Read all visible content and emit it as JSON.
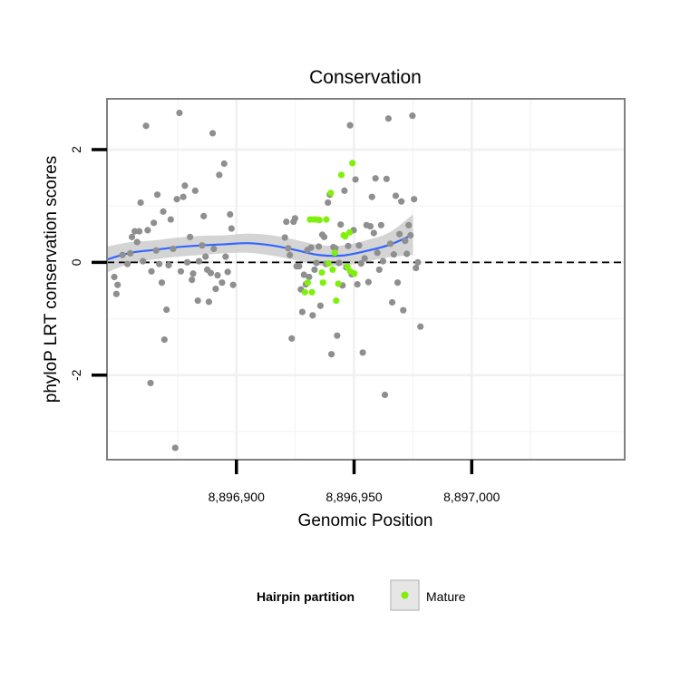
{
  "chart_data": {
    "type": "scatter",
    "title": "Conservation",
    "xlabel": "Genomic Position",
    "ylabel": "phyloP LRT conservation scores",
    "xlim": [
      8896845,
      8897065
    ],
    "ylim": [
      -3.5,
      2.9
    ],
    "x_ticks": [
      8896900,
      8896950,
      8897000
    ],
    "x_tick_labels": [
      "8,896,900",
      "8,896,950",
      "8,897,000"
    ],
    "y_ticks": [
      -2,
      0,
      2
    ],
    "y_tick_labels": [
      "-2",
      "0",
      "2"
    ],
    "grid": true,
    "reference_line": {
      "y": 0,
      "style": "dashed"
    },
    "legend": {
      "title": "Hairpin partition",
      "position": "bottom",
      "entries": [
        "Mature"
      ]
    },
    "colors": {
      "other": "#8f8f8f",
      "mature": "#7ff00a",
      "smooth": "#3366ff",
      "ribbon": "#cccccc"
    },
    "series": [
      {
        "color": "#8f8f8f",
        "points": [
          [
            8896848.1,
            -0.26
          ],
          [
            8896849,
            -0.56
          ],
          [
            8896849.5,
            -0.4
          ],
          [
            8896851.6,
            0.13
          ],
          [
            8896853.7,
            -0.03
          ],
          [
            8896854.9,
            0.16
          ],
          [
            8896855.6,
            0.45
          ],
          [
            8896856.8,
            0.55
          ],
          [
            8896857.8,
            0.36
          ],
          [
            8896858.7,
            0.55
          ],
          [
            8896859.3,
            1.06
          ],
          [
            8896860.3,
            0.02
          ],
          [
            8896861.6,
            2.42
          ],
          [
            8896862.3,
            0.57
          ],
          [
            8896863.5,
            -2.14
          ],
          [
            8896863.9,
            -0.16
          ],
          [
            8896864.9,
            0.7
          ],
          [
            8896865.9,
            0.21
          ],
          [
            8896866.4,
            1.2
          ],
          [
            8896867.2,
            -0.03
          ],
          [
            8896868.3,
            -0.36
          ],
          [
            8896868.9,
            0.9
          ],
          [
            8896869.4,
            -1.37
          ],
          [
            8896870.3,
            -0.84
          ],
          [
            8896871.2,
            -0.05
          ],
          [
            8896872.1,
            0.76
          ],
          [
            8896873.1,
            0.24
          ],
          [
            8896874,
            -3.29
          ],
          [
            8896874.7,
            1.12
          ],
          [
            8896875.8,
            2.65
          ],
          [
            8896876.4,
            -0.16
          ],
          [
            8896877.4,
            1.16
          ],
          [
            8896878.1,
            1.36
          ],
          [
            8896879.1,
            0.0
          ],
          [
            8896880.3,
            0.45
          ],
          [
            8896881.1,
            -0.31
          ],
          [
            8896881.6,
            -0.2
          ],
          [
            8896882.5,
            1.27
          ],
          [
            8896883.6,
            -0.68
          ],
          [
            8896884.1,
            0.02
          ],
          [
            8896885.4,
            0.3
          ],
          [
            8896886.1,
            0.82
          ],
          [
            8896886.9,
            0.1
          ],
          [
            8896887.6,
            -0.13
          ],
          [
            8896888.3,
            -0.7
          ],
          [
            8896889.1,
            -0.19
          ],
          [
            8896889.9,
            2.29
          ],
          [
            8896890.4,
            0.24
          ],
          [
            8896891.2,
            -0.47
          ],
          [
            8896892,
            -0.23
          ],
          [
            8896892.7,
            1.55
          ],
          [
            8896893.9,
            -0.36
          ],
          [
            8896894.8,
            1.75
          ],
          [
            8896895.4,
            0.1
          ],
          [
            8896896.3,
            -0.17
          ],
          [
            8896897.3,
            0.85
          ],
          [
            8896897.9,
            0.6
          ],
          [
            8896898.6,
            -0.4
          ],
          [
            8896920.6,
            0.44
          ],
          [
            8896921.2,
            0.72
          ],
          [
            8896922,
            0.25
          ],
          [
            8896922.7,
            0.13
          ],
          [
            8896923.5,
            -1.35
          ],
          [
            8896924.3,
            0.72
          ],
          [
            8896924.9,
            0.78
          ],
          [
            8896925.6,
            -0.07
          ],
          [
            8896926.6,
            -0.07
          ],
          [
            8896927.4,
            -0.48
          ],
          [
            8896928,
            -0.88
          ],
          [
            8896928.7,
            -0.22
          ],
          [
            8896929.5,
            -0.39
          ],
          [
            8896930.2,
            0.22
          ],
          [
            8896930.9,
            -0.26
          ],
          [
            8896931.7,
            0.26
          ],
          [
            8896932.4,
            -0.94
          ],
          [
            8896933.2,
            -0.13
          ],
          [
            8896934,
            -0.01
          ],
          [
            8896935,
            0.28
          ],
          [
            8896935.7,
            -0.77
          ],
          [
            8896936.5,
            0.49
          ],
          [
            8896937.3,
            0.45
          ],
          [
            8896938.1,
            -0.03
          ],
          [
            8896938.9,
            1.06
          ],
          [
            8896939.7,
            1.2
          ],
          [
            8896940.4,
            -1.63
          ],
          [
            8896941.2,
            0.27
          ],
          [
            8896942,
            0.25
          ],
          [
            8896942.8,
            -1.3
          ],
          [
            8896943.6,
            -0.01
          ],
          [
            8896944.3,
            0.67
          ],
          [
            8896945.1,
            -0.41
          ],
          [
            8896945.9,
            1.27
          ],
          [
            8896946.7,
            -0.09
          ],
          [
            8896947.5,
            0.29
          ],
          [
            8896948.3,
            2.43
          ],
          [
            8896949,
            -0.21
          ],
          [
            8896949.8,
            0.57
          ],
          [
            8896950.6,
            1.47
          ],
          [
            8896951.4,
            -0.39
          ],
          [
            8896952.1,
            0.3
          ],
          [
            8896953,
            -0.02
          ],
          [
            8896953.7,
            -1.6
          ],
          [
            8896954.5,
            0.07
          ],
          [
            8896955.3,
            0.66
          ],
          [
            8896956.1,
            -0.35
          ],
          [
            8896956.9,
            0.64
          ],
          [
            8896957.6,
            1.16
          ],
          [
            8896958.4,
            0.52
          ],
          [
            8896959.1,
            1.49
          ],
          [
            8896959.9,
            0.17
          ],
          [
            8896960.7,
            -0.13
          ],
          [
            8896961.5,
            0.66
          ],
          [
            8896962.3,
            0.02
          ],
          [
            8896963.1,
            -2.35
          ],
          [
            8896963.8,
            1.48
          ],
          [
            8896964.6,
            2.55
          ],
          [
            8896965.4,
            0.33
          ],
          [
            8896966.2,
            -0.71
          ],
          [
            8896966.9,
            0.14
          ],
          [
            8896967.7,
            1.18
          ],
          [
            8896968.5,
            -0.36
          ],
          [
            8896969.3,
            0.5
          ],
          [
            8896970.1,
            1.08
          ],
          [
            8896970.9,
            -0.85
          ],
          [
            8896971.7,
            0.38
          ],
          [
            8896972.4,
            0.15
          ],
          [
            8896973.2,
            0.66
          ],
          [
            8896974,
            0.48
          ],
          [
            8896974.8,
            2.6
          ],
          [
            8896975.5,
            1.12
          ],
          [
            8896976.3,
            -0.1
          ],
          [
            8896977.1,
            0.0
          ],
          [
            8896978.2,
            -1.14
          ]
        ]
      },
      {
        "name": "Mature",
        "color": "#7ff00a",
        "points": [
          [
            8896929.1,
            -0.53
          ],
          [
            8896930.3,
            -0.36
          ],
          [
            8896931.3,
            0.76
          ],
          [
            8896932.1,
            -0.53
          ],
          [
            8896932.9,
            0.76
          ],
          [
            8896933.9,
            0.76
          ],
          [
            8896935.3,
            0.75
          ],
          [
            8896936.3,
            -0.18
          ],
          [
            8896936.8,
            -0.36
          ],
          [
            8896938.2,
            0.76
          ],
          [
            8896939.1,
            -0.02
          ],
          [
            8896940.1,
            1.23
          ],
          [
            8896940.9,
            -0.13
          ],
          [
            8896941.8,
            0.17
          ],
          [
            8896942.4,
            -0.68
          ],
          [
            8896943.3,
            -0.38
          ],
          [
            8896944.6,
            1.55
          ],
          [
            8896945.6,
            0.48
          ],
          [
            8896946.2,
            0.46
          ],
          [
            8896947.2,
            -0.08
          ],
          [
            8896948.1,
            0.53
          ],
          [
            8896948.4,
            -0.16
          ],
          [
            8896949.3,
            1.76
          ],
          [
            8896950.1,
            -0.2
          ]
        ]
      }
    ],
    "smooth": {
      "x": [
        8896845,
        8896855,
        8896865,
        8896875,
        8896885,
        8896895,
        8896905,
        8896915,
        8896925,
        8896935,
        8896945,
        8896955,
        8896965,
        8896975
      ],
      "y": [
        0.05,
        0.17,
        0.22,
        0.27,
        0.3,
        0.32,
        0.34,
        0.3,
        0.22,
        0.13,
        0.12,
        0.2,
        0.31,
        0.49
      ],
      "lower": [
        -0.18,
        -0.02,
        0.05,
        0.1,
        0.13,
        0.16,
        0.17,
        0.12,
        0.04,
        -0.05,
        -0.06,
        0.01,
        0.09,
        0.13
      ],
      "upper": [
        0.28,
        0.36,
        0.39,
        0.44,
        0.47,
        0.48,
        0.51,
        0.48,
        0.4,
        0.31,
        0.3,
        0.39,
        0.53,
        0.85
      ]
    }
  }
}
